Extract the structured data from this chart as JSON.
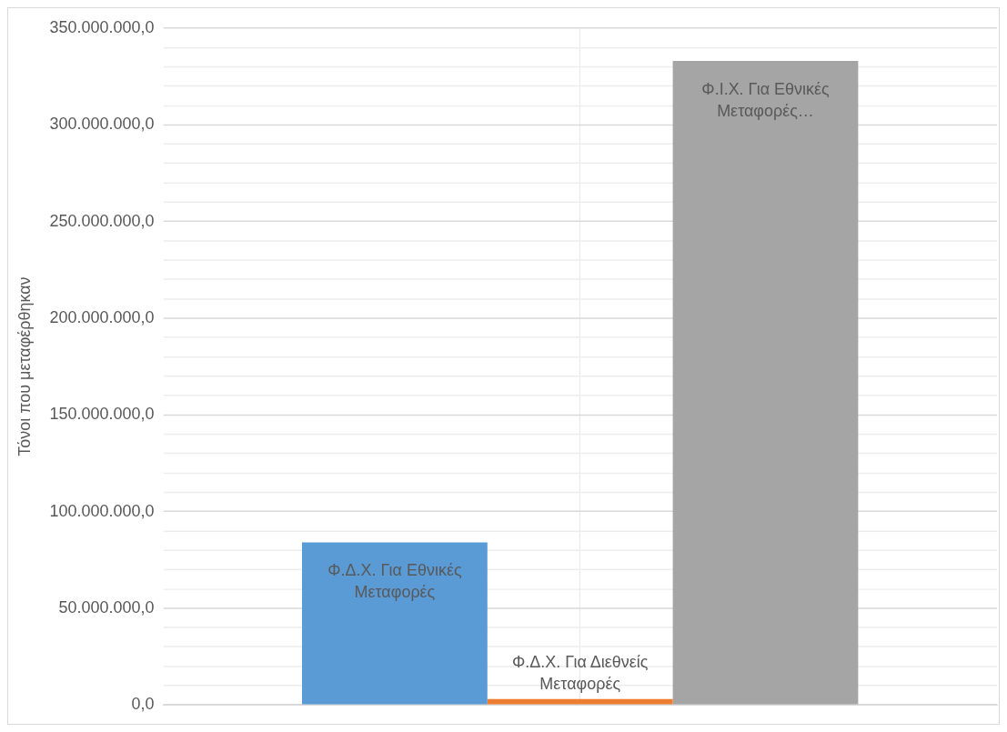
{
  "chart_data": {
    "type": "bar",
    "ylabel": "Τόνοι που μεταφέρθηκαν",
    "categories": [
      null
    ],
    "series": [
      {
        "name": "Φ.Δ.Χ. Για Εθνικές Μεταφορές",
        "color": "#5b9bd5",
        "values": [
          84000000
        ]
      },
      {
        "name": "Φ.Δ.Χ. Για Διεθνείς Μεταφορές",
        "color": "#ed7d31",
        "values": [
          3000000
        ]
      },
      {
        "name": "Φ.Ι.Χ. Για Εθνικές Μεταφορές…",
        "color": "#a5a5a5",
        "values": [
          333000000
        ]
      }
    ],
    "ylim": [
      0,
      350000000
    ],
    "yticks": [
      {
        "value": 0,
        "label": "0,0"
      },
      {
        "value": 10000000,
        "label": null
      },
      {
        "value": 20000000,
        "label": null
      },
      {
        "value": 30000000,
        "label": null
      },
      {
        "value": 40000000,
        "label": null
      },
      {
        "value": 50000000,
        "label": "50.000.000,0"
      },
      {
        "value": 60000000,
        "label": null
      },
      {
        "value": 70000000,
        "label": null
      },
      {
        "value": 80000000,
        "label": null
      },
      {
        "value": 90000000,
        "label": null
      },
      {
        "value": 100000000,
        "label": "100.000.000,0"
      },
      {
        "value": 110000000,
        "label": null
      },
      {
        "value": 120000000,
        "label": null
      },
      {
        "value": 130000000,
        "label": null
      },
      {
        "value": 140000000,
        "label": null
      },
      {
        "value": 150000000,
        "label": "150.000.000,0"
      },
      {
        "value": 160000000,
        "label": null
      },
      {
        "value": 170000000,
        "label": null
      },
      {
        "value": 180000000,
        "label": null
      },
      {
        "value": 190000000,
        "label": null
      },
      {
        "value": 200000000,
        "label": "200.000.000,0"
      },
      {
        "value": 210000000,
        "label": null
      },
      {
        "value": 220000000,
        "label": null
      },
      {
        "value": 230000000,
        "label": null
      },
      {
        "value": 240000000,
        "label": null
      },
      {
        "value": 250000000,
        "label": "250.000.000,0"
      },
      {
        "value": 260000000,
        "label": null
      },
      {
        "value": 270000000,
        "label": null
      },
      {
        "value": 280000000,
        "label": null
      },
      {
        "value": 290000000,
        "label": null
      },
      {
        "value": 300000000,
        "label": "300.000.000,0"
      },
      {
        "value": 310000000,
        "label": null
      },
      {
        "value": 320000000,
        "label": null
      },
      {
        "value": 330000000,
        "label": null
      },
      {
        "value": 340000000,
        "label": null
      },
      {
        "value": 350000000,
        "label": "350.000.000,0"
      }
    ],
    "grid": true,
    "legend": false
  }
}
